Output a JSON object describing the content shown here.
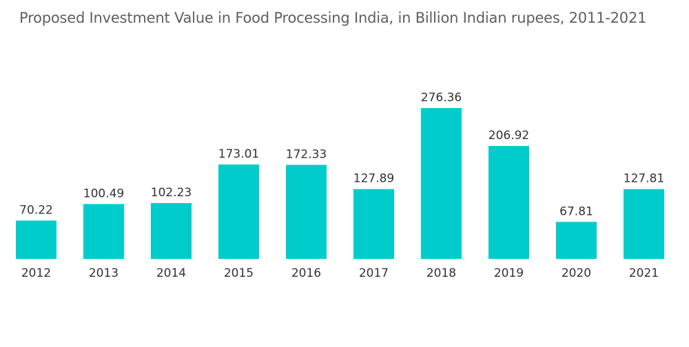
{
  "chart_data": {
    "type": "bar",
    "title": "Proposed Investment Value in Food Processing India, in Billion Indian rupees, 2011-2021",
    "categories": [
      "2012",
      "2013",
      "2014",
      "2015",
      "2016",
      "2017",
      "2018",
      "2019",
      "2020",
      "2021"
    ],
    "values": [
      70.22,
      100.49,
      102.23,
      173.01,
      172.33,
      127.89,
      276.36,
      206.92,
      67.81,
      127.81
    ],
    "value_labels": [
      "70.22",
      "100.49",
      "102.23",
      "173.01",
      "172.33",
      "127.89",
      "276.36",
      "206.92",
      "67.81",
      "127.81"
    ],
    "xlabel": "",
    "ylabel": "",
    "ylim": [
      0,
      276.36
    ],
    "grid": false,
    "legend": "none",
    "bar_color": "#00cccc"
  }
}
